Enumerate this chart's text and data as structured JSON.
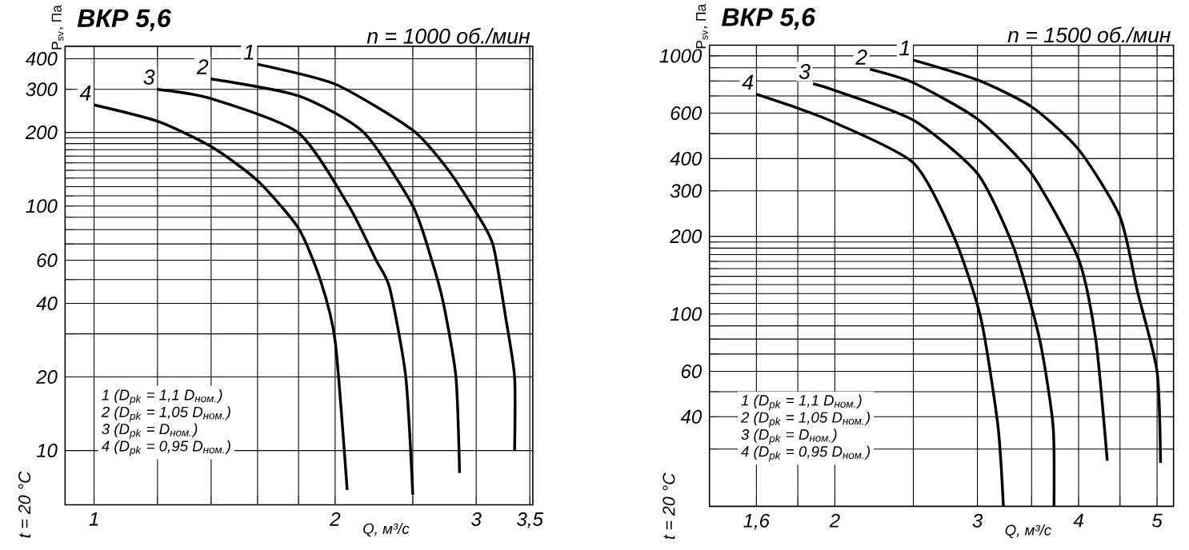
{
  "chart_data": [
    {
      "type": "line",
      "title": "ВКР 5,6",
      "subtitle": "n = 1000 об./мин",
      "xlabel": "Q, м³/с",
      "ylabel": "P$_{sv}$, Па",
      "log": "xy",
      "grid": true,
      "marker": "none",
      "line_style": "solid",
      "xlim": [
        0.92,
        3.53
      ],
      "ylim": [
        6,
        450
      ],
      "xticks": [
        1,
        {
          "value": 1.2,
          "label": null
        },
        {
          "value": 1.4,
          "label": null
        },
        {
          "value": 1.6,
          "label": null
        },
        {
          "value": 1.8,
          "label": null
        },
        2,
        {
          "value": 2.5,
          "label": null
        },
        3,
        {
          "value": 3.5,
          "label": "3,5"
        }
      ],
      "yticks": [
        10,
        20,
        {
          "value": 30,
          "label": null
        },
        40,
        {
          "value": 50,
          "label": null
        },
        60,
        {
          "value": 70,
          "label": null
        },
        {
          "value": 80,
          "label": null
        },
        {
          "value": 90,
          "label": null
        },
        100,
        {
          "value": 110,
          "label": null
        },
        {
          "value": 120,
          "label": null
        },
        {
          "value": 130,
          "label": null
        },
        {
          "value": 140,
          "label": null
        },
        {
          "value": 150,
          "label": null
        },
        {
          "value": 160,
          "label": null
        },
        {
          "value": 170,
          "label": null
        },
        {
          "value": 180,
          "label": null
        },
        {
          "value": 190,
          "label": null
        },
        200,
        300,
        400
      ],
      "series": [
        {
          "color": "#000000",
          "x": [
            1.6,
            2,
            2.5,
            2.77,
            3,
            3.15,
            3.27,
            3.35,
            3.35
          ],
          "values": [
            380,
            315,
            204,
            140,
            94,
            69,
            34,
            20,
            10
          ]
        },
        {
          "color": "#000000",
          "x": [
            1.4,
            1.8,
            2.17,
            2.5,
            2.64,
            2.73,
            2.83,
            2.86
          ],
          "values": [
            331,
            282,
            200,
            100,
            60,
            40,
            20,
            8.1
          ]
        },
        {
          "color": "#000000",
          "x": [
            1.2,
            1.4,
            1.8,
            2.08,
            2.25,
            2.34,
            2.45,
            2.5
          ],
          "values": [
            300,
            275,
            199,
            100,
            60,
            46,
            20,
            6.6
          ]
        },
        {
          "color": "#000000",
          "x": [
            1,
            1.2,
            1.4,
            1.6,
            1.8,
            1.92,
            2,
            2.07
          ],
          "values": [
            259,
            222,
            175,
            127,
            81,
            49,
            28,
            6.9
          ]
        }
      ],
      "annotations": [
        "t = 20 °C",
        "1 (D$_{pk}$ = 1,1 D$_{ном.}$)",
        "2 (D$_{pk}$ = 1,05 D$_{ном.}$)",
        "3 (D$_{pk}$ = D$_{ном.}$)",
        "4 (D$_{pk}$ = 0,95 D$_{ном.}$)",
        {
          "text": "1",
          "x": 1.6,
          "y": 380
        },
        {
          "text": "2",
          "x": 1.4,
          "y": 331
        },
        {
          "text": "3",
          "x": 1.2,
          "y": 300
        },
        {
          "text": "4",
          "x": 1,
          "y": 259
        }
      ]
    },
    {
      "type": "line",
      "title": "ВКР 5,6",
      "subtitle": "n = 1500 об./мин",
      "xlabel": "Q, м³/с",
      "ylabel": "P$_{sv}$, Па",
      "log": "xy",
      "grid": true,
      "marker": "none",
      "line_style": "solid",
      "xlim": [
        1.4,
        5.24
      ],
      "ylim": [
        18,
        1100
      ],
      "xticks": [
        {
          "value": 1.6,
          "label": "1,6"
        },
        {
          "value": 1.8,
          "label": null
        },
        2,
        {
          "value": 2.5,
          "label": null
        },
        3,
        {
          "value": 3.5,
          "label": null
        },
        4,
        {
          "value": 4.5,
          "label": null
        },
        5
      ],
      "yticks": [
        {
          "value": 30,
          "label": null
        },
        40,
        {
          "value": 50,
          "label": null
        },
        60,
        {
          "value": 70,
          "label": null
        },
        {
          "value": 80,
          "label": null
        },
        {
          "value": 90,
          "label": null
        },
        100,
        {
          "value": 110,
          "label": null
        },
        {
          "value": 120,
          "label": null
        },
        {
          "value": 130,
          "label": null
        },
        {
          "value": 140,
          "label": null
        },
        {
          "value": 150,
          "label": null
        },
        {
          "value": 160,
          "label": null
        },
        {
          "value": 170,
          "label": null
        },
        {
          "value": 180,
          "label": null
        },
        {
          "value": 190,
          "label": null
        },
        200,
        300,
        400,
        {
          "value": 500,
          "label": null
        },
        600,
        {
          "value": 700,
          "label": null
        },
        {
          "value": 800,
          "label": null
        },
        {
          "value": 900,
          "label": null
        },
        1000
      ],
      "series": [
        {
          "color": "#000000",
          "x": [
            2.5,
            3,
            3.5,
            4,
            4.5,
            4.73,
            5,
            5.05
          ],
          "values": [
            964,
            807,
            635,
            434,
            238,
            122,
            60,
            26.5
          ]
        },
        {
          "color": "#000000",
          "x": [
            2.21,
            2.5,
            3,
            3.5,
            4,
            4.2,
            4.34
          ],
          "values": [
            888,
            787,
            569,
            350,
            163,
            80,
            27
          ]
        },
        {
          "color": "#000000",
          "x": [
            1.88,
            2,
            2.5,
            3,
            3.33,
            3.58,
            3.72,
            3.73
          ],
          "values": [
            780,
            735,
            564,
            350,
            179,
            80,
            37,
            18
          ]
        },
        {
          "color": "#000000",
          "x": [
            1.6,
            1.8,
            2,
            2.5,
            2.81,
            3.03,
            3.18,
            3.23
          ],
          "values": [
            710,
            627,
            551,
            385,
            197,
            96,
            37,
            18
          ]
        }
      ],
      "annotations": [
        "t = 20 °C",
        "1 (D$_{pk}$ = 1,1 D$_{ном.}$)",
        "2 (D$_{pk}$ = 1,05 D$_{ном.}$)",
        "3 (D$_{pk}$ = D$_{ном.}$)",
        "4 (D$_{pk}$ = 0,95 D$_{ном.}$)",
        {
          "text": "1",
          "x": 2.5,
          "y": 964
        },
        {
          "text": "2",
          "x": 2.21,
          "y": 888
        },
        {
          "text": "3",
          "x": 1.88,
          "y": 780
        },
        {
          "text": "4",
          "x": 1.6,
          "y": 710
        }
      ]
    }
  ]
}
